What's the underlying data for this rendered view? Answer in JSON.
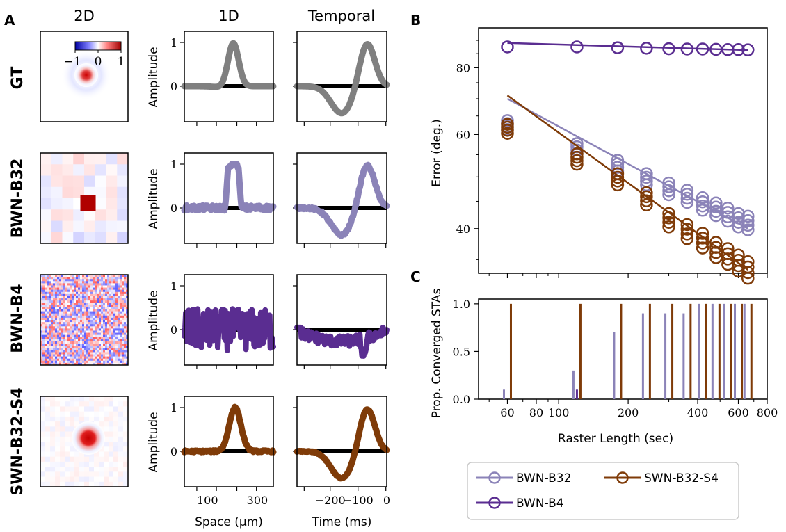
{
  "panel_labels": {
    "a": "A",
    "b": "B",
    "c": "C"
  },
  "column_headers": [
    "2D",
    "1D",
    "Temporal"
  ],
  "row_labels": [
    "GT",
    "BWN-B32",
    "BWN-B4",
    "SWN-B32-S4"
  ],
  "colorbar": {
    "ticks": [
      "−1",
      "0",
      "1"
    ],
    "colors": {
      "neg": "#0000a0",
      "mid": "#ffffff",
      "pos": "#a00000"
    }
  },
  "panel_a": {
    "ylabel": "Amplitude",
    "spatial_xlabel": "Space (μm)",
    "temporal_xlabel": "Time (ms)",
    "spatial_xticks": [
      "100",
      "300"
    ],
    "temporal_xticks": [
      "−200",
      "−100",
      "0"
    ],
    "yticks": [
      "0",
      "1"
    ],
    "zero_line_color": "#000000"
  },
  "series_colors": {
    "GT": "#808080",
    "BWN-B32": "#8b83b8",
    "BWN-B4": "#5a2d91",
    "SWN-B32-S4": "#7f3b08"
  },
  "chart_data": [
    {
      "type": "line",
      "title": "",
      "xlabel": "Raster Length (sec)",
      "ylabel": "Error (deg.)",
      "xscale": "log",
      "yscale": "log",
      "xlim": [
        45,
        800
      ],
      "ylim": [
        33,
        95
      ],
      "yticks": [
        "40",
        "60",
        "80"
      ],
      "grid": false,
      "series": [
        {
          "name": "BWN-B32",
          "color": "#8b83b8",
          "x": [
            60,
            120,
            180,
            240,
            300,
            360,
            420,
            480,
            540,
            600,
            660
          ],
          "y": [
            62.5,
            56.5,
            52.5,
            49.5,
            47.5,
            46.0,
            44.5,
            43.5,
            42.5,
            41.5,
            41.0
          ],
          "fit": [
            [
              60,
              70
            ],
            [
              660,
              40
            ]
          ]
        },
        {
          "name": "SWN-B32-S4",
          "color": "#7f3b08",
          "x": [
            60,
            120,
            180,
            240,
            300,
            360,
            420,
            480,
            540,
            600,
            660
          ],
          "y": [
            61.5,
            54.0,
            49.5,
            45.5,
            41.5,
            39.5,
            38.0,
            36.5,
            35.5,
            34.5,
            33.5
          ],
          "fit": [
            [
              60,
              71
            ],
            [
              660,
              33.5
            ]
          ]
        },
        {
          "name": "BWN-B4",
          "color": "#5a2d91",
          "x": [
            60,
            120,
            180,
            240,
            300,
            360,
            420,
            480,
            540,
            600,
            660
          ],
          "y": [
            87.5,
            87.5,
            87.2,
            87.0,
            86.8,
            86.7,
            86.7,
            86.6,
            86.5,
            86.5,
            86.4
          ],
          "fit": [
            [
              60,
              89
            ],
            [
              660,
              86.3
            ]
          ]
        }
      ]
    },
    {
      "type": "bar",
      "title": "",
      "xlabel": "Raster Length (sec)",
      "ylabel": "Prop. Converged STAs",
      "xscale": "log",
      "xlim": [
        45,
        800
      ],
      "ylim": [
        0,
        1.05
      ],
      "xticks": [
        "60",
        "80",
        "100",
        "200",
        "400",
        "600",
        "800"
      ],
      "yticks": [
        "0.0",
        "0.5",
        "1.0"
      ],
      "grid": false,
      "series": [
        {
          "name": "BWN-B32",
          "color": "#8b83b8",
          "x": [
            60,
            120,
            180,
            240,
            300,
            360,
            420,
            480,
            540,
            600,
            660
          ],
          "values": [
            0.1,
            0.3,
            0.7,
            0.9,
            0.9,
            0.9,
            1.0,
            1.0,
            1.0,
            1.0,
            1.0
          ]
        },
        {
          "name": "SWN-B32-S4",
          "color": "#7f3b08",
          "x": [
            60,
            120,
            180,
            240,
            300,
            360,
            420,
            480,
            540,
            600,
            660
          ],
          "values": [
            1.0,
            1.0,
            1.0,
            1.0,
            1.0,
            1.0,
            1.0,
            1.0,
            1.0,
            1.0,
            1.0
          ]
        },
        {
          "name": "BWN-B4",
          "color": "#5a2d91",
          "x": [
            120
          ],
          "values": [
            0.1
          ]
        }
      ]
    }
  ],
  "legend": {
    "placement": "bottom-right",
    "entries": [
      "BWN-B32",
      "SWN-B32-S4",
      "BWN-B4"
    ]
  }
}
